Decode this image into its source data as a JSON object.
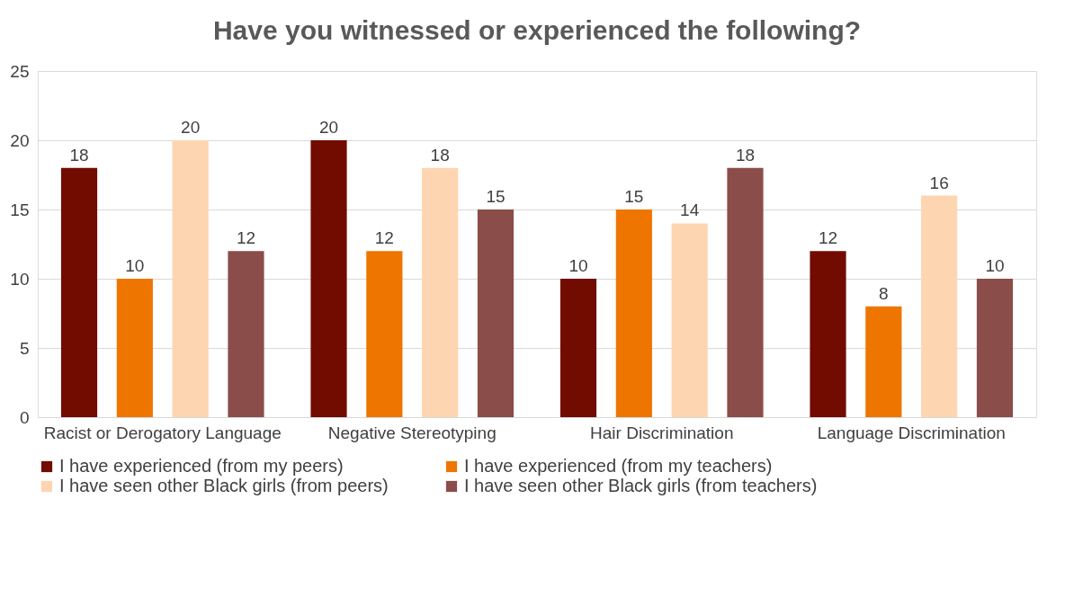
{
  "chart_data": {
    "type": "bar",
    "title": "Have you witnessed or experienced the following?",
    "categories": [
      "Racist or Derogatory Language",
      "Negative Stereotyping",
      "Hair Discrimination",
      "Language Discrimination"
    ],
    "series": [
      {
        "name": "I have experienced (from my peers)",
        "color": "#720c00",
        "values": [
          18,
          20,
          10,
          12
        ]
      },
      {
        "name": "I have experienced (from my teachers)",
        "color": "#ee7600",
        "values": [
          10,
          12,
          15,
          8
        ]
      },
      {
        "name": "I have seen other Black girls (from peers)",
        "color": "#fdd5b0",
        "values": [
          20,
          18,
          14,
          16
        ]
      },
      {
        "name": "I have seen other Black girls (from teachers)",
        "color": "#8b4d4a",
        "values": [
          12,
          15,
          18,
          10
        ]
      }
    ],
    "ylim": [
      0,
      25
    ],
    "yticks": [
      0,
      5,
      10,
      15,
      20,
      25
    ],
    "grid": "y",
    "legend": "bottom",
    "data_labels": true
  }
}
